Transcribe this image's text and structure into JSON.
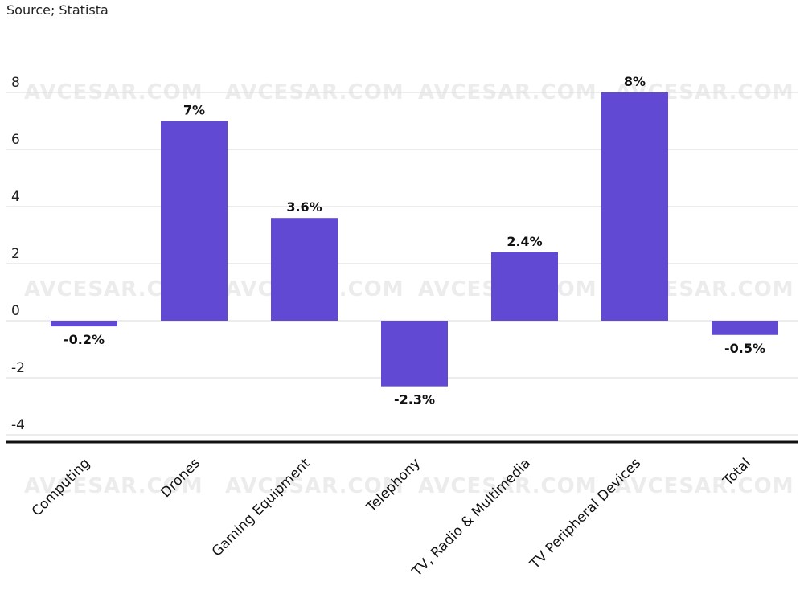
{
  "source": "Source; Statista",
  "watermark": "AVCESAR.COM",
  "chart_data": {
    "type": "bar",
    "title": "",
    "xlabel": "",
    "ylabel": "",
    "categories": [
      "Computing",
      "Drones",
      "Gaming Equipment",
      "Telephony",
      "TV, Radio & Multimedia",
      "TV Peripheral Devices",
      "Total"
    ],
    "values": [
      -0.2,
      7,
      3.6,
      -2.3,
      2.4,
      8,
      -0.5
    ],
    "data_labels": [
      "-0.2%",
      "7%",
      "3.6%",
      "-2.3%",
      "2.4%",
      "8%",
      "-0.5%"
    ],
    "yticks": [
      8,
      6,
      4,
      2,
      0,
      -2,
      -4
    ],
    "ylim": [
      -4.2,
      8.5
    ],
    "grid": true,
    "legend": "none",
    "bar_color": "#6149d4"
  }
}
